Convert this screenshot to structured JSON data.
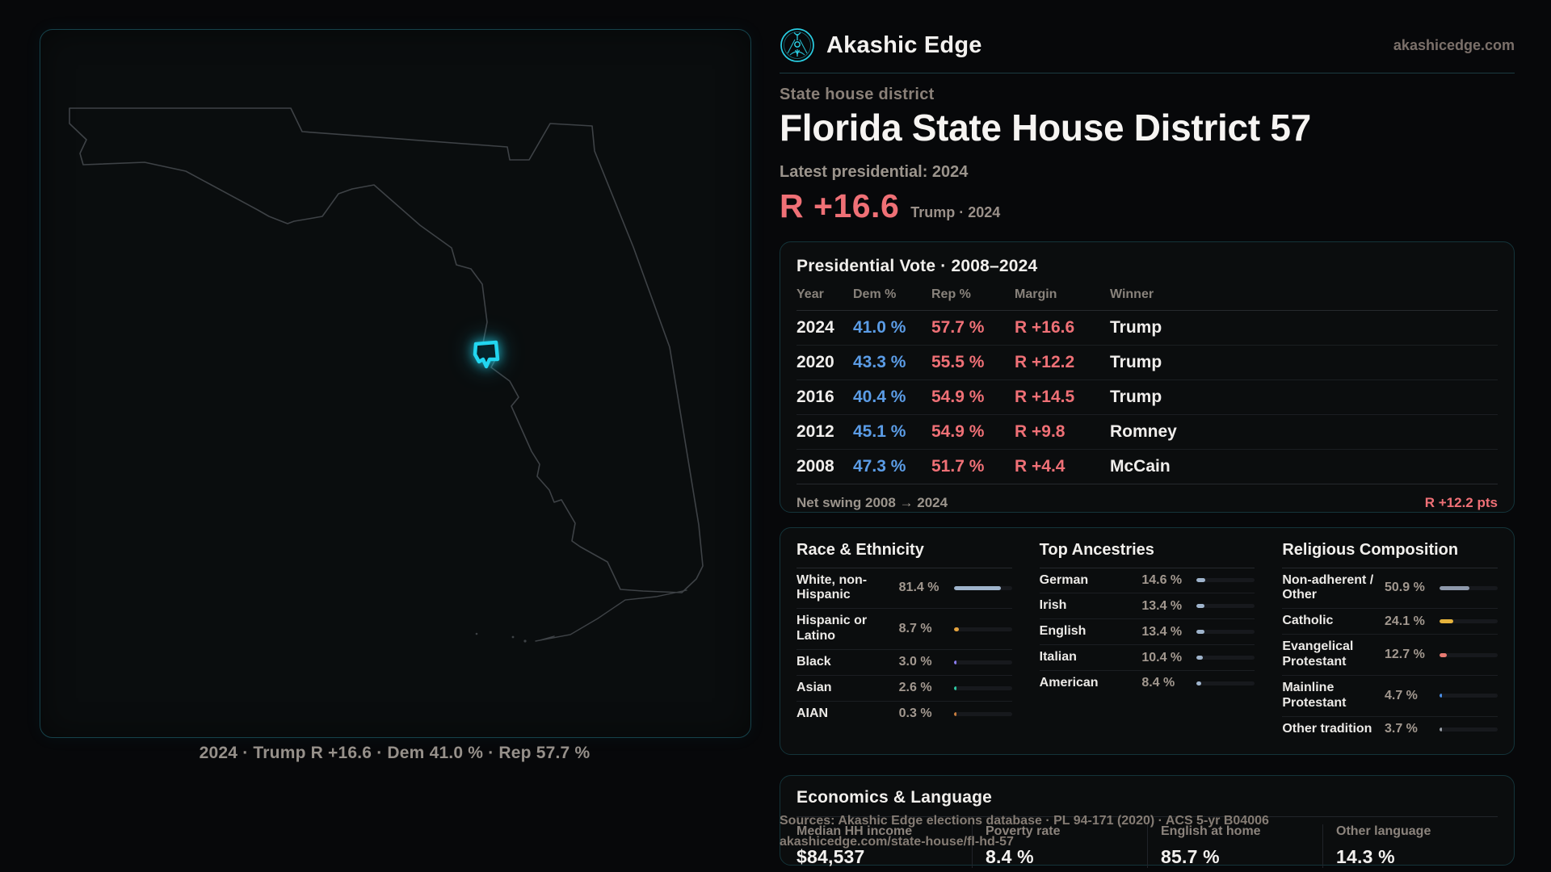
{
  "theme": {
    "accent": "#22d6f0",
    "dem_color": "#5b9ce6",
    "rep_color": "#ef7076",
    "bar_track": "#17191d"
  },
  "brand": {
    "name": "Akashic Edge",
    "domain": "akashicedge.com"
  },
  "page": {
    "kicker": "State house district",
    "title": "Florida State House District 57",
    "latest_label": "Latest presidential: 2024",
    "headline_margin": "R +16.6",
    "headline_note": "Trump · 2024"
  },
  "map": {
    "caption": "2024 · Trump R +16.6 · Dem 41.0 % · Rep 57.7 %"
  },
  "presidential": {
    "title": "Presidential Vote · 2008–2024",
    "columns": [
      "Year",
      "Dem %",
      "Rep %",
      "Margin",
      "Winner"
    ],
    "rows": [
      {
        "year": "2024",
        "dem": "41.0 %",
        "rep": "57.7 %",
        "margin": "R +16.6",
        "winner": "Trump"
      },
      {
        "year": "2020",
        "dem": "43.3 %",
        "rep": "55.5 %",
        "margin": "R +12.2",
        "winner": "Trump"
      },
      {
        "year": "2016",
        "dem": "40.4 %",
        "rep": "54.9 %",
        "margin": "R +14.5",
        "winner": "Trump"
      },
      {
        "year": "2012",
        "dem": "45.1 %",
        "rep": "54.9 %",
        "margin": "R +9.8",
        "winner": "Romney"
      },
      {
        "year": "2008",
        "dem": "47.3 %",
        "rep": "51.7 %",
        "margin": "R +4.4",
        "winner": "McCain"
      }
    ],
    "net_swing_label": "Net swing 2008 → 2024",
    "net_swing_value": "R +12.2 pts"
  },
  "demographics": [
    {
      "title": "Race & Ethnicity",
      "rows": [
        {
          "label": "White, non-Hispanic",
          "value": "81.4 %",
          "pct": 81.4,
          "color": "#9fb4cc"
        },
        {
          "label": "Hispanic or Latino",
          "value": "8.7 %",
          "pct": 8.7,
          "color": "#e5a33e"
        },
        {
          "label": "Black",
          "value": "3.0 %",
          "pct": 3.0,
          "color": "#8b7cf0"
        },
        {
          "label": "Asian",
          "value": "2.6 %",
          "pct": 2.6,
          "color": "#2ec9a2"
        },
        {
          "label": "AIAN",
          "value": "0.3 %",
          "pct": 0.3,
          "color": "#c87d3e"
        }
      ]
    },
    {
      "title": "Top Ancestries",
      "rows": [
        {
          "label": "German",
          "value": "14.6 %",
          "pct": 14.6,
          "color": "#9fb4cc"
        },
        {
          "label": "Irish",
          "value": "13.4 %",
          "pct": 13.4,
          "color": "#9fb4cc"
        },
        {
          "label": "English",
          "value": "13.4 %",
          "pct": 13.4,
          "color": "#9fb4cc"
        },
        {
          "label": "Italian",
          "value": "10.4 %",
          "pct": 10.4,
          "color": "#9fb4cc"
        },
        {
          "label": "American",
          "value": "8.4 %",
          "pct": 8.4,
          "color": "#9fb4cc"
        }
      ]
    },
    {
      "title": "Religious Composition",
      "rows": [
        {
          "label": "Non-adherent / Other",
          "value": "50.9 %",
          "pct": 50.9,
          "color": "#8e99ab"
        },
        {
          "label": "Catholic",
          "value": "24.1 %",
          "pct": 24.1,
          "color": "#e6b33c"
        },
        {
          "label": "Evangelical Protestant",
          "value": "12.7 %",
          "pct": 12.7,
          "color": "#e87a72"
        },
        {
          "label": "Mainline Protestant",
          "value": "4.7 %",
          "pct": 4.7,
          "color": "#4a8fe8"
        },
        {
          "label": "Other tradition",
          "value": "3.7 %",
          "pct": 3.7,
          "color": "#9aa0a8"
        }
      ]
    }
  ],
  "economics": {
    "title": "Economics & Language",
    "stats": [
      {
        "label": "Median HH income",
        "value": "$84,537"
      },
      {
        "label": "Poverty rate",
        "value": "8.4 %"
      },
      {
        "label": "English at home",
        "value": "85.7 %"
      },
      {
        "label": "Other language",
        "value": "14.3 %"
      }
    ]
  },
  "footer": {
    "line1": "Sources: Akashic Edge elections database · PL 94-171 (2020) · ACS 5-yr B04006",
    "line2": "akashicedge.com/state-house/fl-hd-57"
  }
}
